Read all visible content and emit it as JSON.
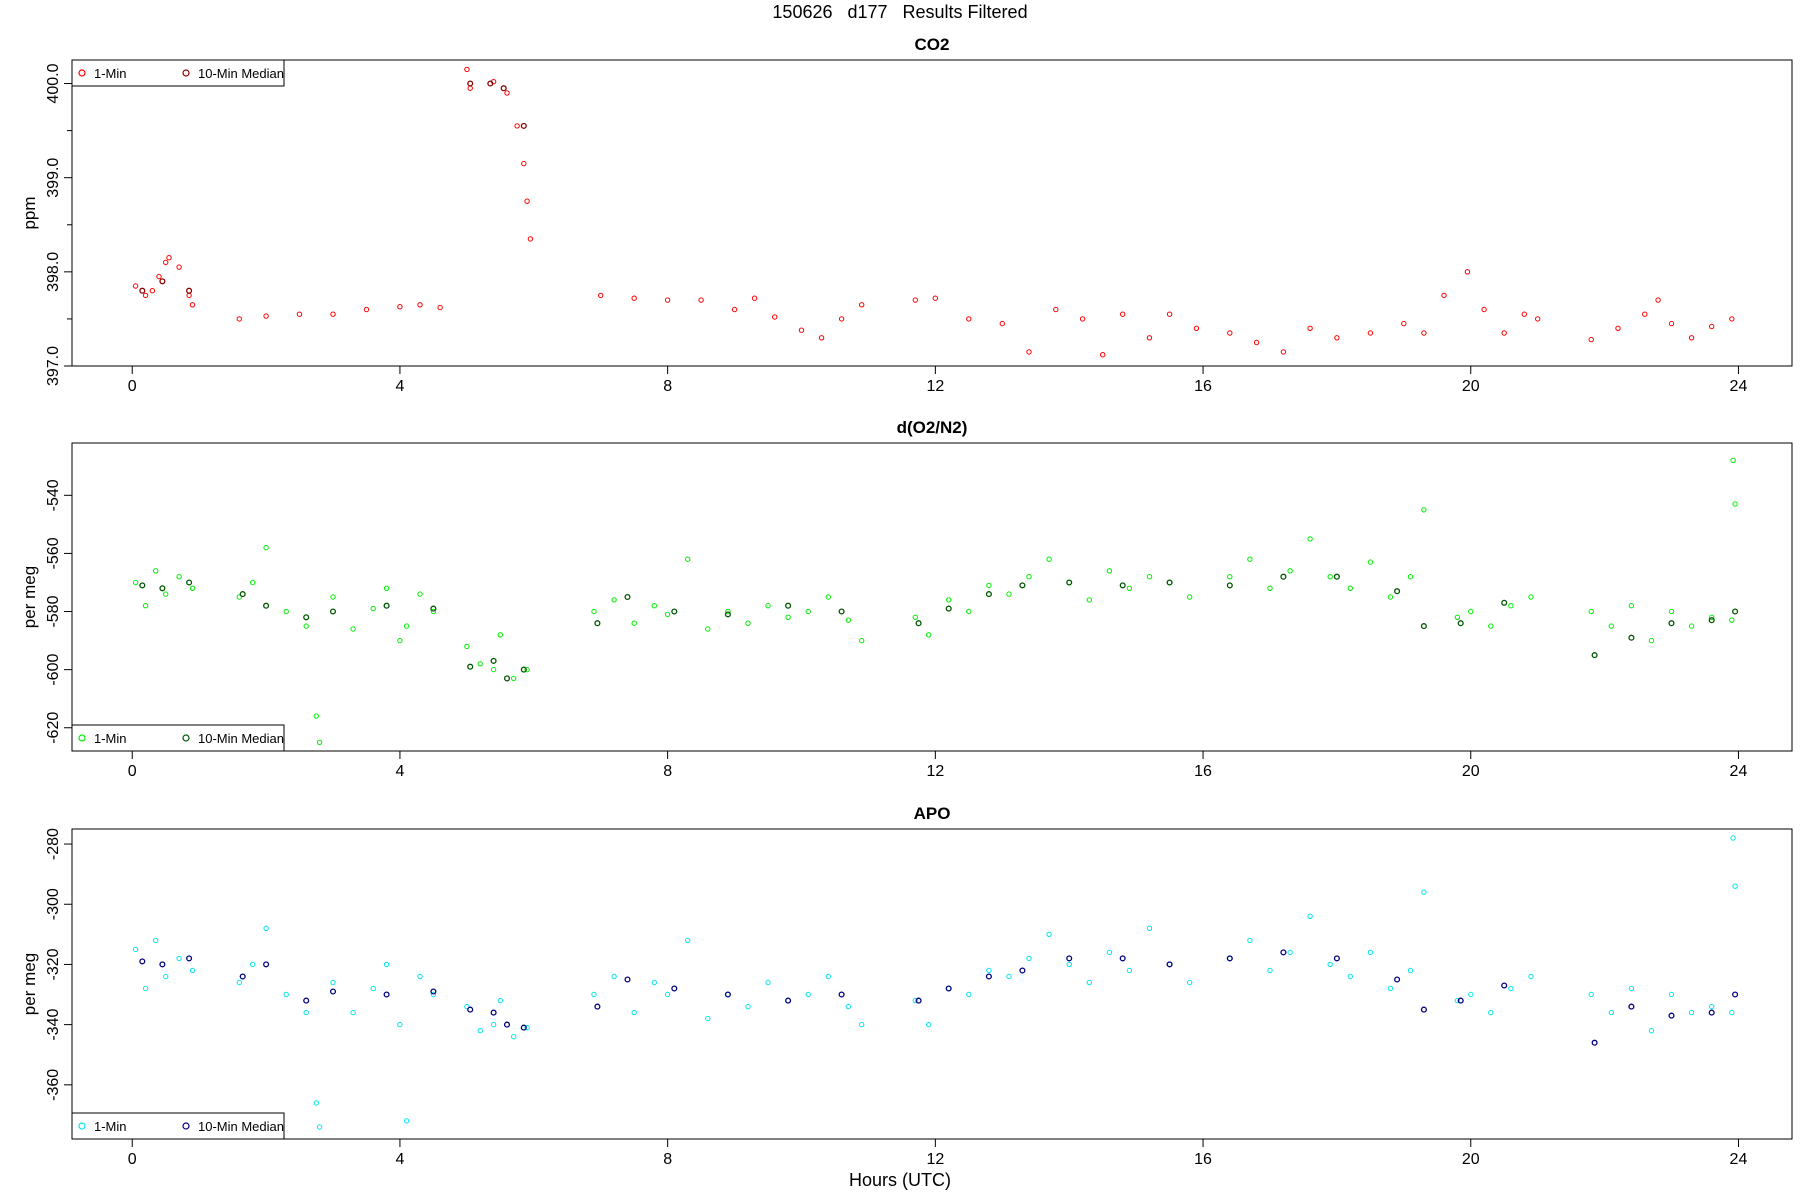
{
  "page_title": "150626   d177   Results Filtered",
  "x_axis_title": "Hours (UTC)",
  "colors": {
    "co2_one_min": "#ff0000",
    "co2_median": "#8b0000",
    "o2n2_one_min": "#00ee00",
    "o2n2_median": "#005500",
    "apo_one_min": "#00e5ee",
    "apo_median": "#000080"
  },
  "chart_data": [
    {
      "type": "scatter",
      "title": "CO2",
      "ylabel": "ppm",
      "xlim": [
        -0.9,
        24.8
      ],
      "ylim": [
        397.0,
        400.25
      ],
      "xticks": [
        0,
        4,
        8,
        12,
        16,
        20,
        24
      ],
      "xtick_labels": [
        "0",
        "4",
        "8",
        "12",
        "16",
        "20",
        "24"
      ],
      "yticks": [
        397.0,
        398.0,
        399.0,
        400.0
      ],
      "ytick_labels": [
        "397.0",
        "398.0",
        "399.0",
        "400.0"
      ],
      "yminor_ticks": [
        397.5,
        398.5,
        399.5
      ],
      "legend": {
        "position": "top-left",
        "entries": [
          "1-Min",
          "10-Min Median"
        ]
      },
      "series": [
        {
          "name": "1-Min",
          "x": [
            0.05,
            0.2,
            0.3,
            0.4,
            0.5,
            0.55,
            0.7,
            0.85,
            0.9,
            1.6,
            2.0,
            2.5,
            3.0,
            3.5,
            4.0,
            4.3,
            4.6,
            5.0,
            5.05,
            5.4,
            5.6,
            5.75,
            5.85,
            5.9,
            5.95,
            7.0,
            7.5,
            8.0,
            8.5,
            9.0,
            9.3,
            9.6,
            10.0,
            10.3,
            10.6,
            10.9,
            11.7,
            12.0,
            12.5,
            13.0,
            13.4,
            13.8,
            14.2,
            14.5,
            14.8,
            15.2,
            15.5,
            15.9,
            16.4,
            16.8,
            17.2,
            17.6,
            18.0,
            18.5,
            19.0,
            19.3,
            19.6,
            19.95,
            20.2,
            20.5,
            20.8,
            21.0,
            21.8,
            22.2,
            22.6,
            22.8,
            23.0,
            23.3,
            23.6,
            23.9
          ],
          "y": [
            397.85,
            397.75,
            397.8,
            397.95,
            398.1,
            398.15,
            398.05,
            397.75,
            397.65,
            397.5,
            397.53,
            397.55,
            397.55,
            397.6,
            397.63,
            397.65,
            397.62,
            400.15,
            399.95,
            400.02,
            399.9,
            399.55,
            399.15,
            398.75,
            398.35,
            397.75,
            397.72,
            397.7,
            397.7,
            397.6,
            397.72,
            397.52,
            397.38,
            397.3,
            397.5,
            397.65,
            397.7,
            397.72,
            397.5,
            397.45,
            397.15,
            397.6,
            397.5,
            397.12,
            397.55,
            397.3,
            397.55,
            397.4,
            397.35,
            397.25,
            397.15,
            397.4,
            397.3,
            397.35,
            397.45,
            397.35,
            397.75,
            398.0,
            397.6,
            397.35,
            397.55,
            397.5,
            397.28,
            397.4,
            397.55,
            397.7,
            397.45,
            397.3,
            397.42,
            397.5
          ]
        },
        {
          "name": "10-Min Median",
          "x": [
            0.15,
            0.45,
            0.85,
            5.05,
            5.35,
            5.55,
            5.85
          ],
          "y": [
            397.8,
            397.9,
            397.8,
            400.0,
            400.0,
            399.95,
            399.55
          ]
        }
      ]
    },
    {
      "type": "scatter",
      "title": "d(O2/N2)",
      "ylabel": "per meg",
      "xlim": [
        -0.9,
        24.8
      ],
      "ylim": [
        -628,
        -522
      ],
      "xticks": [
        0,
        4,
        8,
        12,
        16,
        20,
        24
      ],
      "xtick_labels": [
        "0",
        "4",
        "8",
        "12",
        "16",
        "20",
        "24"
      ],
      "yticks": [
        -620,
        -600,
        -580,
        -560,
        -540
      ],
      "ytick_labels": [
        "-620",
        "-600",
        "-580",
        "-560",
        "-540"
      ],
      "legend": {
        "position": "bottom-left",
        "entries": [
          "1-Min",
          "10-Min Median"
        ]
      },
      "series": [
        {
          "name": "1-Min",
          "x": [
            0.05,
            0.2,
            0.35,
            0.5,
            0.7,
            0.9,
            1.6,
            1.8,
            2.0,
            2.3,
            2.6,
            2.75,
            2.8,
            3.0,
            3.3,
            3.6,
            3.8,
            4.0,
            4.1,
            4.3,
            4.5,
            5.0,
            5.2,
            5.4,
            5.5,
            5.7,
            5.9,
            6.9,
            7.2,
            7.5,
            7.8,
            8.0,
            8.3,
            8.6,
            8.9,
            9.2,
            9.5,
            9.8,
            10.1,
            10.4,
            10.7,
            10.9,
            11.7,
            11.9,
            12.2,
            12.5,
            12.8,
            13.1,
            13.4,
            13.7,
            14.0,
            14.3,
            14.6,
            14.9,
            15.2,
            15.5,
            15.8,
            16.4,
            16.7,
            17.0,
            17.3,
            17.6,
            17.9,
            18.2,
            18.5,
            18.8,
            19.1,
            19.3,
            19.8,
            20.0,
            20.3,
            20.6,
            20.9,
            21.8,
            22.1,
            22.4,
            22.7,
            23.0,
            23.3,
            23.6,
            23.9,
            23.92,
            23.95
          ],
          "y": [
            -570,
            -578,
            -566,
            -574,
            -568,
            -572,
            -575,
            -570,
            -558,
            -580,
            -585,
            -616,
            -625,
            -575,
            -586,
            -579,
            -572,
            -590,
            -585,
            -574,
            -580,
            -592,
            -598,
            -600,
            -588,
            -603,
            -600,
            -580,
            -576,
            -584,
            -578,
            -581,
            -562,
            -586,
            -580,
            -584,
            -578,
            -582,
            -580,
            -575,
            -583,
            -590,
            -582,
            -588,
            -576,
            -580,
            -571,
            -574,
            -568,
            -562,
            -570,
            -576,
            -566,
            -572,
            -568,
            -570,
            -575,
            -568,
            -562,
            -572,
            -566,
            -555,
            -568,
            -572,
            -563,
            -575,
            -568,
            -545,
            -582,
            -580,
            -585,
            -578,
            -575,
            -580,
            -585,
            -578,
            -590,
            -580,
            -585,
            -582,
            -583,
            -528,
            -543
          ]
        },
        {
          "name": "10-Min Median",
          "x": [
            0.15,
            0.45,
            0.85,
            1.65,
            2.0,
            2.6,
            3.0,
            3.8,
            4.5,
            5.05,
            5.4,
            5.6,
            5.85,
            6.95,
            7.4,
            8.1,
            8.9,
            9.8,
            10.6,
            11.75,
            12.2,
            12.8,
            13.3,
            14.0,
            14.8,
            15.5,
            16.4,
            17.2,
            18.0,
            18.9,
            19.3,
            19.85,
            20.5,
            21.85,
            22.4,
            23.0,
            23.6,
            23.95
          ],
          "y": [
            -571,
            -572,
            -570,
            -574,
            -578,
            -582,
            -580,
            -578,
            -579,
            -599,
            -597,
            -603,
            -600,
            -584,
            -575,
            -580,
            -581,
            -578,
            -580,
            -584,
            -579,
            -574,
            -571,
            -570,
            -571,
            -570,
            -571,
            -568,
            -568,
            -573,
            -585,
            -584,
            -577,
            -595,
            -589,
            -584,
            -583,
            -580
          ]
        }
      ]
    },
    {
      "type": "scatter",
      "title": "APO",
      "ylabel": "per meg",
      "xlim": [
        -0.9,
        24.8
      ],
      "ylim": [
        -378,
        -275
      ],
      "xticks": [
        0,
        4,
        8,
        12,
        16,
        20,
        24
      ],
      "xtick_labels": [
        "0",
        "4",
        "8",
        "12",
        "16",
        "20",
        "24"
      ],
      "yticks": [
        -360,
        -340,
        -320,
        -300,
        -280
      ],
      "ytick_labels": [
        "-360",
        "-340",
        "-320",
        "-300",
        "-280"
      ],
      "legend": {
        "position": "bottom-left",
        "entries": [
          "1-Min",
          "10-Min Median"
        ]
      },
      "series": [
        {
          "name": "1-Min",
          "x": [
            0.05,
            0.2,
            0.35,
            0.5,
            0.7,
            0.9,
            1.6,
            1.8,
            2.0,
            2.3,
            2.6,
            2.75,
            2.8,
            3.0,
            3.3,
            3.6,
            3.8,
            4.0,
            4.1,
            4.3,
            4.5,
            5.0,
            5.2,
            5.4,
            5.5,
            5.7,
            5.9,
            6.9,
            7.2,
            7.5,
            7.8,
            8.0,
            8.3,
            8.6,
            8.9,
            9.2,
            9.5,
            9.8,
            10.1,
            10.4,
            10.7,
            10.9,
            11.7,
            11.9,
            12.2,
            12.5,
            12.8,
            13.1,
            13.4,
            13.7,
            14.0,
            14.3,
            14.6,
            14.9,
            15.2,
            15.5,
            15.8,
            16.4,
            16.7,
            17.0,
            17.3,
            17.6,
            17.9,
            18.2,
            18.5,
            18.8,
            19.1,
            19.3,
            19.8,
            20.0,
            20.3,
            20.6,
            20.9,
            21.8,
            22.1,
            22.4,
            22.7,
            23.0,
            23.3,
            23.6,
            23.9,
            23.92,
            23.95
          ],
          "y": [
            -315,
            -328,
            -312,
            -324,
            -318,
            -322,
            -326,
            -320,
            -308,
            -330,
            -336,
            -366,
            -374,
            -326,
            -336,
            -328,
            -320,
            -340,
            -372,
            -324,
            -330,
            -334,
            -342,
            -340,
            -332,
            -344,
            -341,
            -330,
            -324,
            -336,
            -326,
            -330,
            -312,
            -338,
            -330,
            -334,
            -326,
            -332,
            -330,
            -324,
            -334,
            -340,
            -332,
            -340,
            -328,
            -330,
            -322,
            -324,
            -318,
            -310,
            -320,
            -326,
            -316,
            -322,
            -308,
            -320,
            -326,
            -318,
            -312,
            -322,
            -316,
            -304,
            -320,
            -324,
            -316,
            -328,
            -322,
            -296,
            -332,
            -330,
            -336,
            -328,
            -324,
            -330,
            -336,
            -328,
            -342,
            -330,
            -336,
            -334,
            -336,
            -278,
            -294
          ]
        },
        {
          "name": "10-Min Median",
          "x": [
            0.15,
            0.45,
            0.85,
            1.65,
            2.0,
            2.6,
            3.0,
            3.8,
            4.5,
            5.05,
            5.4,
            5.6,
            5.85,
            6.95,
            7.4,
            8.1,
            8.9,
            9.8,
            10.6,
            11.75,
            12.2,
            12.8,
            13.3,
            14.0,
            14.8,
            15.5,
            16.4,
            17.2,
            18.0,
            18.9,
            19.3,
            19.85,
            20.5,
            21.85,
            22.4,
            23.0,
            23.6,
            23.95
          ],
          "y": [
            -319,
            -320,
            -318,
            -324,
            -320,
            -332,
            -329,
            -330,
            -329,
            -335,
            -336,
            -340,
            -341,
            -334,
            -325,
            -328,
            -330,
            -332,
            -330,
            -332,
            -328,
            -324,
            -322,
            -318,
            -318,
            -320,
            -318,
            -316,
            -318,
            -325,
            -335,
            -332,
            -327,
            -346,
            -334,
            -337,
            -336,
            -330
          ]
        }
      ]
    }
  ]
}
